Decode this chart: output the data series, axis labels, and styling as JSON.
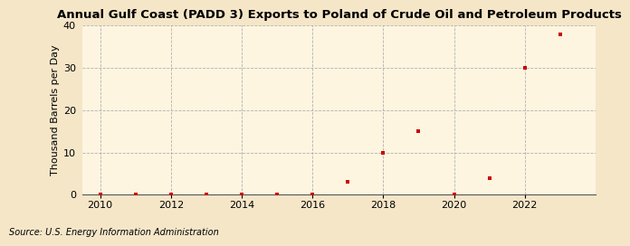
{
  "title": "Annual Gulf Coast (PADD 3) Exports to Poland of Crude Oil and Petroleum Products",
  "ylabel": "Thousand Barrels per Day",
  "source": "Source: U.S. Energy Information Administration",
  "background_color": "#f5e6c8",
  "plot_background_color": "#fdf5e0",
  "marker_color": "#cc0000",
  "grid_color": "#aaaaaa",
  "years": [
    2010,
    2011,
    2012,
    2013,
    2014,
    2015,
    2016,
    2017,
    2018,
    2019,
    2020,
    2021,
    2022,
    2023
  ],
  "values": [
    0.0,
    0.05,
    0.0,
    0.05,
    0.05,
    0.05,
    0.05,
    3.0,
    10.0,
    15.0,
    0.05,
    4.0,
    30.0,
    38.0
  ],
  "xlim": [
    2009.5,
    2024.0
  ],
  "ylim": [
    0,
    40
  ],
  "yticks": [
    0,
    10,
    20,
    30,
    40
  ],
  "xticks": [
    2010,
    2012,
    2014,
    2016,
    2018,
    2020,
    2022
  ],
  "title_fontsize": 9.5,
  "label_fontsize": 8.0,
  "tick_fontsize": 8.0,
  "source_fontsize": 7.0
}
